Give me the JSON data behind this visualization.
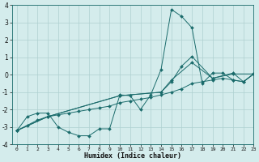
{
  "xlabel": "Humidex (Indice chaleur)",
  "xlim": [
    -0.5,
    23
  ],
  "ylim": [
    -4,
    4
  ],
  "xticks": [
    0,
    1,
    2,
    3,
    4,
    5,
    6,
    7,
    8,
    9,
    10,
    11,
    12,
    13,
    14,
    15,
    16,
    17,
    18,
    19,
    20,
    21,
    22,
    23
  ],
  "yticks": [
    -4,
    -3,
    -2,
    -1,
    0,
    1,
    2,
    3,
    4
  ],
  "bg_color": "#d4ecec",
  "grid_color": "#aed0d0",
  "line_color": "#1a6b6b",
  "lines": [
    {
      "x": [
        0,
        1,
        2,
        3,
        4,
        5,
        6,
        7,
        8,
        9,
        10,
        11,
        12,
        13,
        14,
        15,
        16,
        17,
        18,
        19,
        20,
        21,
        22,
        23
      ],
      "y": [
        -3.2,
        -2.4,
        -2.2,
        -2.2,
        -3.0,
        -3.3,
        -3.5,
        -3.5,
        -3.1,
        -3.1,
        -1.15,
        -1.2,
        -2.0,
        -1.15,
        0.3,
        3.75,
        3.35,
        2.7,
        -0.5,
        0.1,
        0.1,
        -0.3,
        -0.4,
        0.05
      ]
    },
    {
      "x": [
        0,
        1,
        2,
        3,
        4,
        5,
        6,
        7,
        8,
        9,
        10,
        11,
        12,
        13,
        14,
        15,
        16,
        17,
        18,
        19,
        20,
        21,
        22,
        23
      ],
      "y": [
        -3.2,
        -2.9,
        -2.6,
        -2.4,
        -2.3,
        -2.2,
        -2.1,
        -2.0,
        -1.9,
        -1.8,
        -1.6,
        -1.5,
        -1.4,
        -1.3,
        -1.15,
        -1.0,
        -0.8,
        -0.5,
        -0.4,
        -0.3,
        -0.2,
        -0.3,
        -0.4,
        0.05
      ]
    },
    {
      "x": [
        0,
        3,
        10,
        14,
        15,
        16,
        17,
        19,
        21,
        22,
        23
      ],
      "y": [
        -3.2,
        -2.4,
        -1.2,
        -1.0,
        -0.4,
        0.5,
        1.05,
        -0.2,
        0.1,
        -0.4,
        0.05
      ]
    },
    {
      "x": [
        0,
        3,
        10,
        14,
        15,
        17,
        19,
        21,
        23
      ],
      "y": [
        -3.2,
        -2.4,
        -1.2,
        -1.0,
        -0.3,
        0.7,
        -0.2,
        0.05,
        0.05
      ]
    }
  ]
}
